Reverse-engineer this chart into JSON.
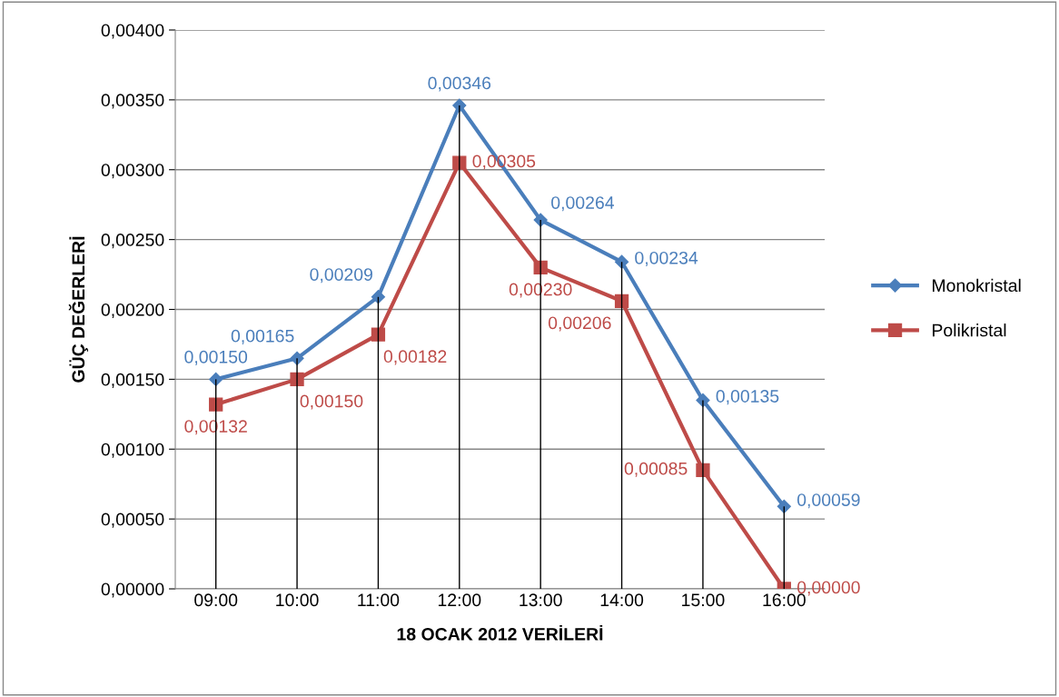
{
  "chart_data": {
    "type": "line",
    "xlabel": "18 OCAK 2012 VERİLERİ",
    "ylabel": "GÜÇ DEĞERLERİ",
    "categories": [
      "09:00",
      "10:00",
      "11:00",
      "12:00",
      "13:00",
      "14:00",
      "15:00",
      "16:00"
    ],
    "series": [
      {
        "name": "Monokristal",
        "color": "#4a7ebb",
        "marker": "diamond",
        "values": [
          0.0015,
          0.00165,
          0.00209,
          0.00346,
          0.00264,
          0.00234,
          0.00135,
          0.00059
        ],
        "value_labels": [
          "0,00150",
          "0,00165",
          "0,00209",
          "0,00346",
          "0,00264",
          "0,00234",
          "0,00135",
          "0,00059"
        ],
        "errors": [
          [
            0.0015,
            0
          ],
          [
            0.00165,
            0
          ],
          [
            0.00209,
            0
          ],
          [
            0.00346,
            0
          ],
          [
            0.00264,
            0
          ],
          [
            0.00234,
            0
          ],
          [
            0.00135,
            0
          ],
          [
            0.00059,
            0
          ]
        ]
      },
      {
        "name": "Polikristal",
        "color": "#be4b48",
        "marker": "square",
        "values": [
          0.00132,
          0.0015,
          0.00182,
          0.00305,
          0.0023,
          0.00206,
          0.00085,
          0.0
        ],
        "value_labels": [
          "0,00132",
          "0,00150",
          "0,00182",
          "0,00305",
          "0,00230",
          "0,00206",
          "0,00085",
          "0,00000"
        ]
      }
    ],
    "ylim": [
      0,
      0.004
    ],
    "yticks": [
      {
        "value": 0,
        "label": "0,00000"
      },
      {
        "value": 0.0005,
        "label": "0,00050"
      },
      {
        "value": 0.001,
        "label": "0,00100"
      },
      {
        "value": 0.0015,
        "label": "0,00150"
      },
      {
        "value": 0.002,
        "label": "0,00200"
      },
      {
        "value": 0.0025,
        "label": "0,00250"
      },
      {
        "value": 0.003,
        "label": "0,00300"
      },
      {
        "value": 0.0035,
        "label": "0,00350"
      },
      {
        "value": 0.004,
        "label": "0,00400"
      }
    ],
    "grid": "y",
    "legend": "right",
    "line_style": "solid"
  }
}
